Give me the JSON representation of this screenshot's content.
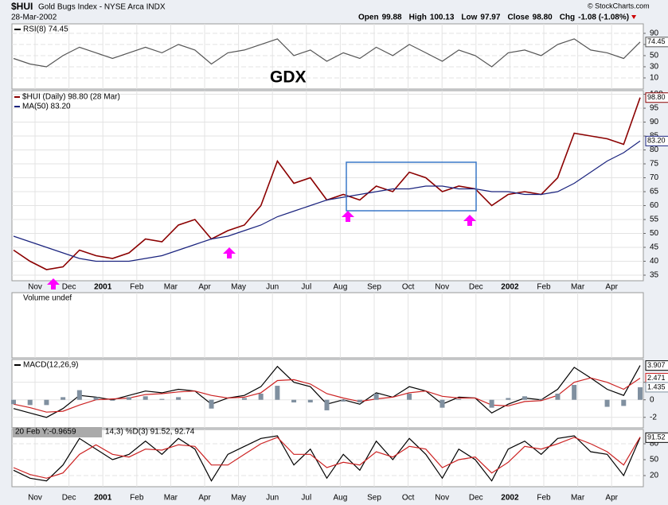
{
  "header": {
    "symbol": "$HUI",
    "name": "Gold Bugs Index - NYSE Arca INDX",
    "date": "28-Mar-2002",
    "brand": "© StockCharts.com",
    "quote": [
      {
        "label": "Open",
        "value": "99.88"
      },
      {
        "label": "High",
        "value": "100.13"
      },
      {
        "label": "Low",
        "value": "97.97"
      },
      {
        "label": "Close",
        "value": "98.80"
      },
      {
        "label": "Chg",
        "value": "-1.08 (-1.08%)"
      }
    ]
  },
  "chart_data": [
    {
      "type": "line",
      "title": "RSI(8) 74.45",
      "annotation": "GDX",
      "ylim": [
        -10,
        107
      ],
      "yticks": [
        10,
        30,
        50,
        70,
        90
      ],
      "grid": true,
      "series": [
        {
          "color": "#555555",
          "badge": true,
          "values": [
            45,
            35,
            30,
            50,
            65,
            55,
            45,
            55,
            65,
            55,
            70,
            60,
            35,
            55,
            60,
            70,
            80,
            50,
            60,
            40,
            55,
            45,
            65,
            50,
            70,
            55,
            40,
            60,
            50,
            30,
            55,
            60,
            50,
            70,
            80,
            60,
            55,
            45,
            74.45
          ]
        }
      ]
    },
    {
      "type": "line",
      "ylim": [
        33,
        101.3
      ],
      "yticks": [
        35,
        40,
        45,
        50,
        55,
        60,
        65,
        70,
        75,
        80,
        85,
        90,
        95,
        100
      ],
      "grid": true,
      "x_labels": [
        "Nov",
        "Dec",
        "2001",
        "Feb",
        "Mar",
        "Apr",
        "May",
        "Jun",
        "Jul",
        "Aug",
        "Sep",
        "Oct",
        "Nov",
        "Dec",
        "2002",
        "Feb",
        "Mar",
        "Apr"
      ],
      "series": [
        {
          "name": "$HUI (Daily) 98.80 (28 Mar)",
          "color": "#8b0000",
          "badge": true,
          "last_label": "98.80",
          "values": [
            44,
            40,
            37,
            38,
            44,
            42,
            41,
            43,
            48,
            47,
            53,
            55,
            48,
            51,
            53,
            60,
            76,
            68,
            70,
            62,
            64,
            62,
            67,
            65,
            72,
            70,
            65,
            67,
            66,
            60,
            64,
            65,
            64,
            70,
            86,
            85,
            84,
            82,
            98.8
          ]
        },
        {
          "name": "MA(50) 83.20",
          "color": "#1a237e",
          "badge": true,
          "last_label": "83.20",
          "values": [
            49,
            47,
            45,
            43,
            41,
            40,
            40,
            40,
            41,
            42,
            44,
            46,
            48,
            49,
            51,
            53,
            56,
            58,
            60,
            62,
            63,
            64,
            65,
            66,
            66,
            67,
            67,
            66,
            66,
            65,
            65,
            64,
            64,
            65,
            68,
            72,
            76,
            79,
            83.2
          ]
        }
      ]
    },
    {
      "type": "line",
      "title": "Volume undef",
      "series": []
    },
    {
      "type": "line",
      "title": "MACD(12,26,9)",
      "ylim": [
        -3.2,
        4.6
      ],
      "yticks": [
        -2,
        0,
        2
      ],
      "grid": true,
      "series": [
        {
          "color": "#000000",
          "badge": true,
          "values": [
            -1,
            -1.5,
            -2,
            -1,
            0.5,
            0.3,
            0,
            0.5,
            1,
            0.8,
            1.2,
            1,
            -0.5,
            0.2,
            0.5,
            1.5,
            3.8,
            2,
            1.5,
            -0.5,
            0,
            -0.5,
            0.8,
            0.3,
            1.5,
            1,
            -0.5,
            0.3,
            0.2,
            -1.5,
            -0.5,
            0.2,
            0,
            1.2,
            3.7,
            2.5,
            1.2,
            0.5,
            3.907
          ]
        },
        {
          "color": "#cc2222",
          "badge": true,
          "values": [
            -0.5,
            -0.9,
            -1.4,
            -1.3,
            -0.6,
            0,
            0.1,
            0.2,
            0.6,
            0.7,
            0.9,
            1,
            0.5,
            0.2,
            0.3,
            0.8,
            2.2,
            2.3,
            1.8,
            0.7,
            0.2,
            -0.2,
            0.1,
            0.3,
            0.8,
            1,
            0.4,
            0.2,
            0.2,
            -0.6,
            -0.7,
            -0.2,
            -0.1,
            0.5,
            2,
            2.5,
            2,
            1.2,
            2.471
          ]
        },
        {
          "color": "#8090a0",
          "kind": "bar",
          "badge": true,
          "values": [
            -0.5,
            -0.6,
            -0.6,
            0.3,
            1.1,
            0.3,
            -0.1,
            0.3,
            0.4,
            0.1,
            0.3,
            0,
            -1,
            0,
            0.2,
            0.7,
            1.6,
            -0.3,
            -0.3,
            -1.2,
            -0.2,
            -0.3,
            0.7,
            0,
            0.7,
            0,
            -0.9,
            0.1,
            0,
            -0.9,
            0.2,
            0.4,
            0.1,
            0.7,
            1.7,
            0,
            -0.8,
            -0.7,
            1.435
          ]
        }
      ]
    },
    {
      "type": "line",
      "tooltip": "20 Feb Y:-0.9659",
      "title": "14,3) %D(3) 91.52, 92.74",
      "ylim": [
        -1,
        107
      ],
      "yticks": [
        20,
        50,
        80
      ],
      "grid": true,
      "series": [
        {
          "color": "#000000",
          "badge": true,
          "values": [
            30,
            15,
            10,
            40,
            90,
            70,
            50,
            60,
            85,
            60,
            90,
            70,
            10,
            60,
            75,
            90,
            95,
            40,
            70,
            15,
            60,
            30,
            85,
            50,
            90,
            60,
            15,
            70,
            50,
            10,
            70,
            85,
            60,
            90,
            95,
            65,
            60,
            20,
            91.52
          ]
        },
        {
          "color": "#cc2222",
          "values": [
            35,
            22,
            15,
            25,
            60,
            78,
            60,
            55,
            70,
            68,
            78,
            75,
            40,
            40,
            60,
            80,
            92,
            60,
            60,
            35,
            45,
            40,
            65,
            55,
            75,
            70,
            35,
            50,
            55,
            25,
            45,
            75,
            70,
            80,
            92,
            80,
            65,
            40,
            92.74
          ]
        }
      ]
    }
  ]
}
